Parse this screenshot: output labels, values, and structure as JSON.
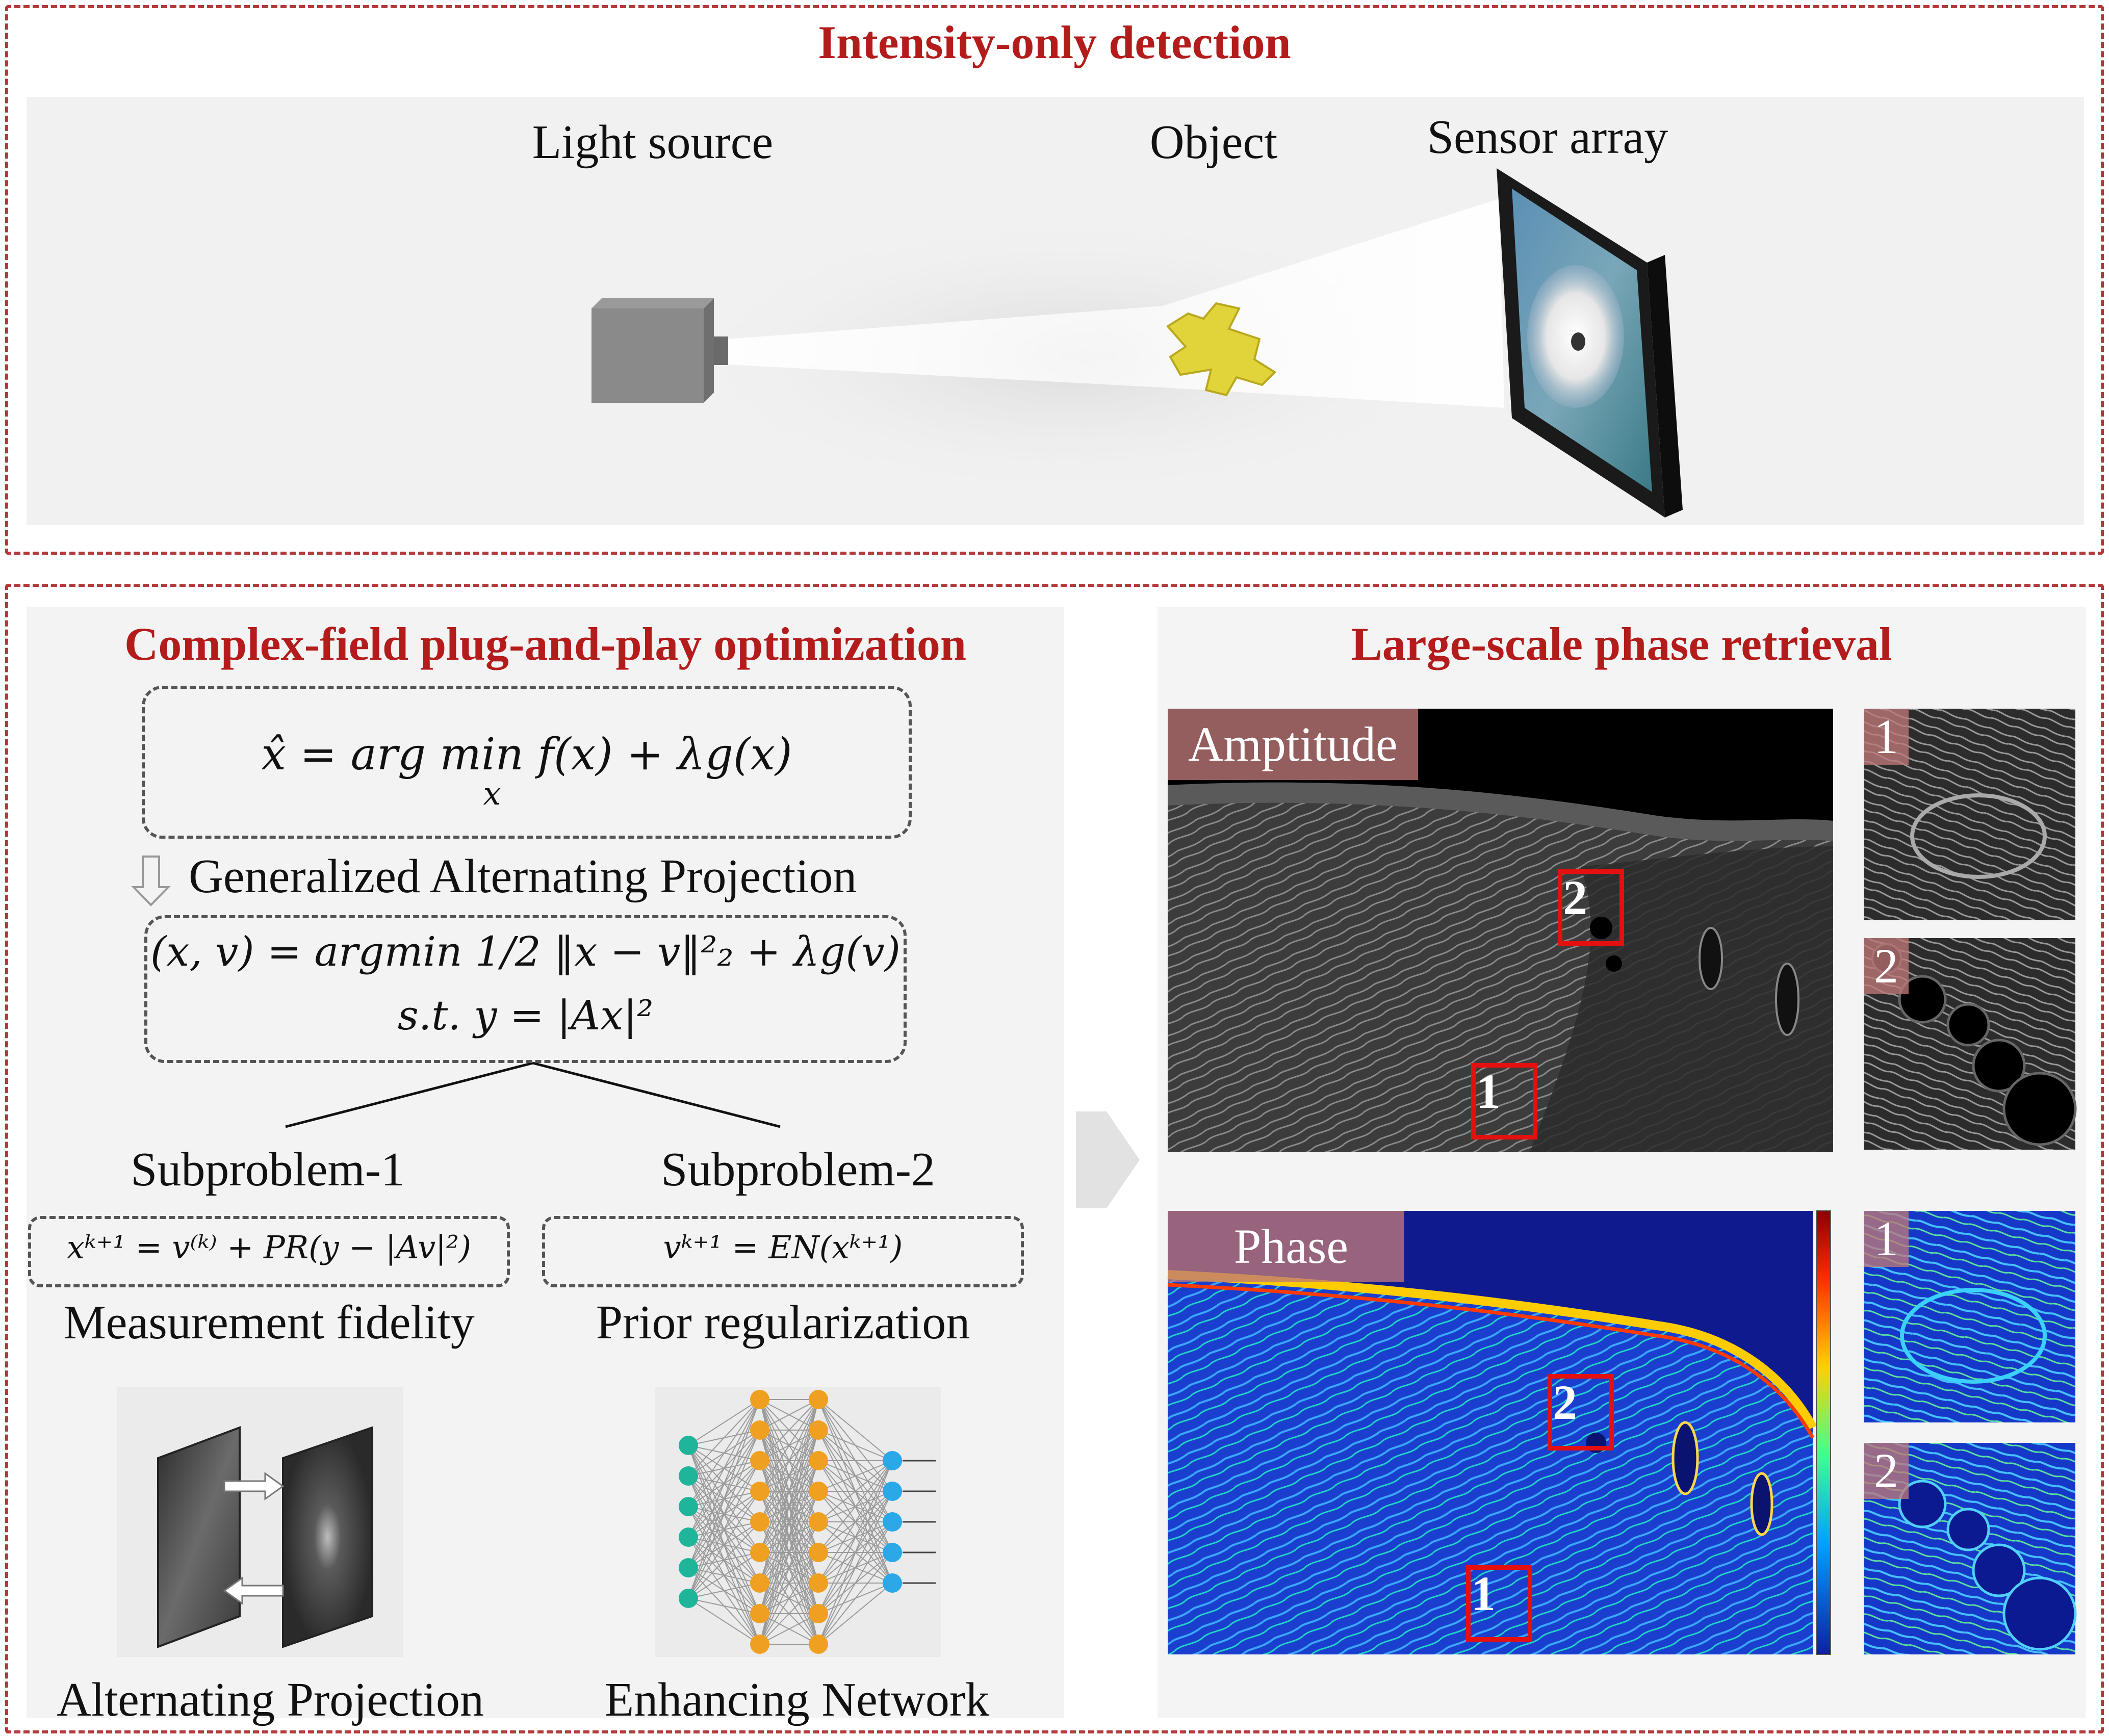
{
  "top": {
    "title": "Intensity-only detection",
    "light_source": "Light source",
    "object": "Object",
    "sensor_array": "Sensor array"
  },
  "optimization": {
    "title": "Complex-field plug-and-play optimization",
    "objective": "x̂ = arg min f(x) + λg(x)",
    "objective_sub": "x",
    "gap_label": "Generalized Alternating Projection",
    "gap_eq_line1": "(x, v) = argmin 1/2 ‖x − v‖²₂ + λg(v)",
    "gap_eq_line2": "s.t. y = |Ax|²",
    "sub1": {
      "name": "Subproblem-1",
      "equation": "xᵏ⁺¹ = v⁽ᵏ⁾ + PR(y − |Av|²)",
      "role": "Measurement fidelity",
      "module": "Alternating Projection"
    },
    "sub2": {
      "name": "Subproblem-2",
      "equation": "vᵏ⁺¹ = EN(xᵏ⁺¹)",
      "role": "Prior regularization",
      "module": "Enhancing Network"
    }
  },
  "retrieval": {
    "title": "Large-scale phase retrieval",
    "amplitude_label": "Amptitude",
    "phase_label": "Phase",
    "roi_1": "1",
    "roi_2": "2"
  }
}
